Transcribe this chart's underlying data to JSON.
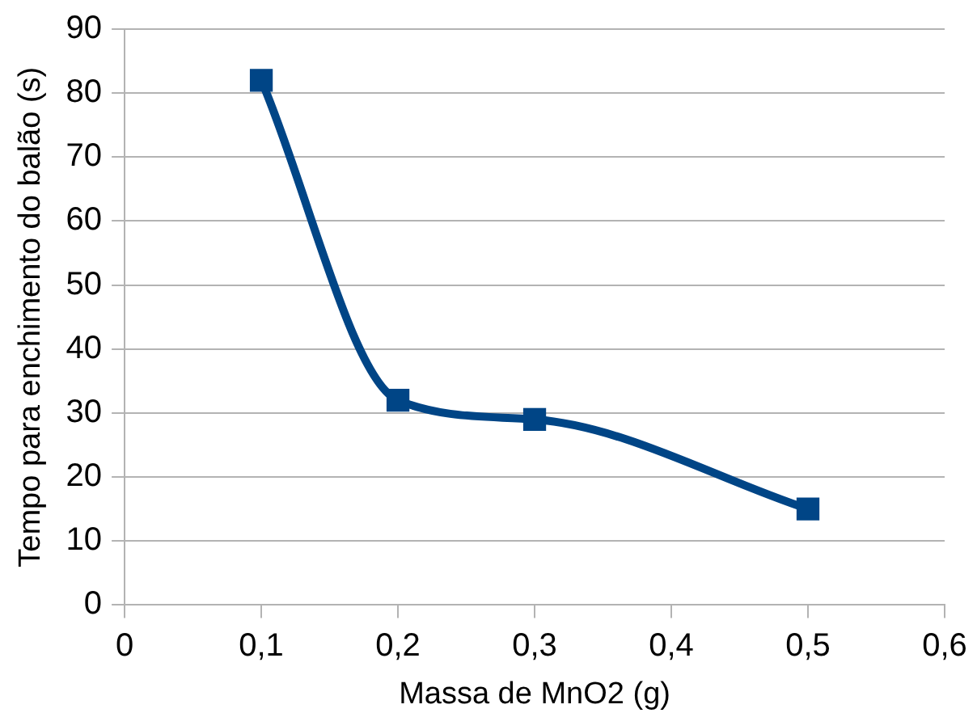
{
  "chart_data": {
    "type": "line",
    "xlabel": "Massa de MnO2 (g)",
    "ylabel": "Tempo para enchimento do balão (s)",
    "x": [
      0.1,
      0.2,
      0.3,
      0.5
    ],
    "series": [
      {
        "color": "#004586",
        "values": [
          82,
          32,
          29,
          15
        ]
      }
    ],
    "xlim": [
      0,
      0.6
    ],
    "xticks": [
      0,
      {
        "value": 0.1,
        "label": "0,1"
      },
      {
        "value": 0.2,
        "label": "0,2"
      },
      {
        "value": 0.3,
        "label": "0,3"
      },
      {
        "value": 0.4,
        "label": "0,4"
      },
      {
        "value": 0.5,
        "label": "0,5"
      },
      {
        "value": 0.6,
        "label": "0,6"
      }
    ],
    "ylim": [
      0,
      90
    ],
    "yticks": [
      0,
      10,
      20,
      30,
      40,
      50,
      60,
      70,
      80,
      90
    ],
    "grid": "y",
    "legend": false,
    "marker": "square",
    "line_style": "solid"
  }
}
